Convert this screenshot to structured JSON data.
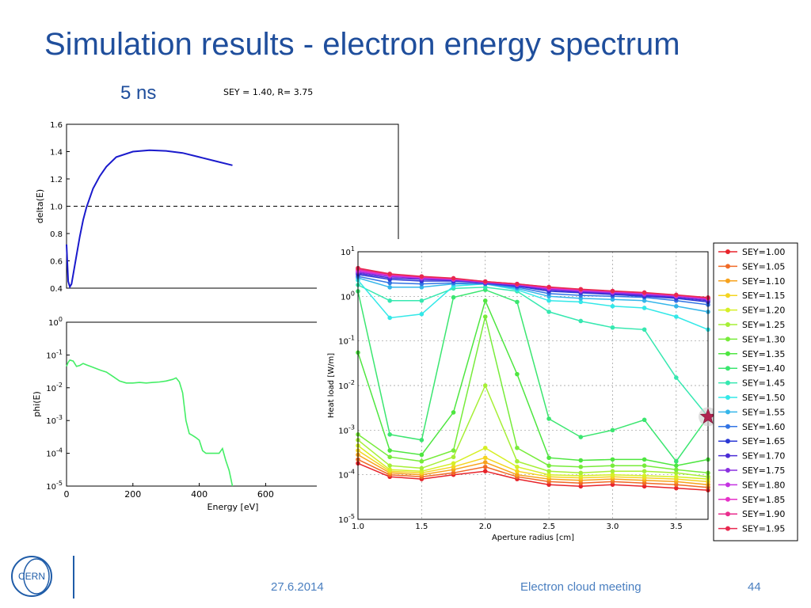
{
  "slide": {
    "title": "Simulation results - electron energy spectrum",
    "subtitle": "5 ns",
    "plot_title": "SEY = 1.40, R= 3.75",
    "footer_date": "27.6.2014",
    "footer_meeting": "Electron cloud meeting",
    "page_number": "44",
    "logo_text": "CERN"
  },
  "chart_data": [
    {
      "type": "line",
      "ylabel": "delta(E)",
      "xlim": [
        0,
        1000
      ],
      "ylim": [
        0.4,
        1.6
      ],
      "yticks": [
        "0.4",
        "0.6",
        "0.8",
        "1.0",
        "1.2",
        "1.4",
        "1.6"
      ],
      "series": [
        {
          "color": "#1a1acc",
          "x": [
            0,
            5,
            10,
            15,
            20,
            30,
            40,
            50,
            60,
            70,
            80,
            100,
            120,
            150,
            200,
            250,
            300,
            350,
            400,
            450,
            500
          ],
          "y": [
            0.72,
            0.45,
            0.41,
            0.43,
            0.5,
            0.64,
            0.78,
            0.9,
            0.99,
            1.06,
            1.13,
            1.22,
            1.29,
            1.36,
            1.4,
            1.41,
            1.405,
            1.39,
            1.36,
            1.33,
            1.3
          ]
        }
      ],
      "reference_line": {
        "y": 1.0,
        "style": "dashed"
      }
    },
    {
      "type": "line",
      "xlabel": "Energy [eV]",
      "ylabel": "phi(E)",
      "xlim": [
        0,
        1000
      ],
      "ylim_log10": [
        -5,
        0
      ],
      "xticks": [
        "0",
        "200",
        "400",
        "600"
      ],
      "yticks": [
        "10^-5",
        "10^-4",
        "10^-3",
        "10^-2",
        "10^-1",
        "10^0"
      ],
      "series": [
        {
          "color": "#44ee66",
          "x": [
            0,
            5,
            10,
            20,
            30,
            40,
            50,
            60,
            80,
            100,
            120,
            140,
            160,
            180,
            200,
            220,
            240,
            260,
            280,
            300,
            320,
            330,
            340,
            350,
            360,
            370,
            380,
            390,
            400,
            410,
            420,
            440,
            460,
            470,
            480,
            490,
            500
          ],
          "y": [
            0.045,
            0.06,
            0.07,
            0.065,
            0.045,
            0.048,
            0.055,
            0.05,
            0.042,
            0.035,
            0.03,
            0.022,
            0.016,
            0.014,
            0.014,
            0.0145,
            0.014,
            0.0145,
            0.015,
            0.016,
            0.018,
            0.02,
            0.015,
            0.007,
            0.001,
            0.0004,
            0.00035,
            0.0003,
            0.00025,
            0.00012,
            0.0001,
            0.0001,
            0.0001,
            0.00014,
            6e-05,
            3e-05,
            1e-05
          ]
        }
      ]
    },
    {
      "type": "line",
      "xlabel": "Aperture radius [cm]",
      "ylabel": "Heat load [W/m]",
      "xlim": [
        1.0,
        3.75
      ],
      "ylim_log10": [
        -5,
        1
      ],
      "xticks": [
        "1.0",
        "1.5",
        "2.0",
        "2.5",
        "3.0",
        "3.5"
      ],
      "yticks": [
        "10^-5",
        "10^-4",
        "10^-3",
        "10^-2",
        "10^-1",
        "10^0",
        "10^1"
      ],
      "x": [
        1.0,
        1.25,
        1.5,
        1.75,
        2.0,
        2.25,
        2.5,
        2.75,
        3.0,
        3.25,
        3.5,
        3.75
      ],
      "legend_position": "right",
      "series": [
        {
          "name": "SEY=1.00",
          "color": "#e8242b",
          "values": [
            0.00018,
            9e-05,
            8e-05,
            0.0001,
            0.00012,
            8e-05,
            6e-05,
            5.5e-05,
            6e-05,
            5.5e-05,
            5e-05,
            4.5e-05
          ]
        },
        {
          "name": "SEY=1.05",
          "color": "#f06a26",
          "values": [
            0.00022,
            0.0001,
            9e-05,
            0.00011,
            0.00015,
            9e-05,
            7e-05,
            6.5e-05,
            7e-05,
            6.5e-05,
            6e-05,
            5.2e-05
          ]
        },
        {
          "name": "SEY=1.10",
          "color": "#f7a21c",
          "values": [
            0.00028,
            0.00011,
            0.0001,
            0.00013,
            0.00019,
            0.0001,
            8e-05,
            7.5e-05,
            8e-05,
            7.5e-05,
            7e-05,
            6e-05
          ]
        },
        {
          "name": "SEY=1.15",
          "color": "#f4d421",
          "values": [
            0.00035,
            0.00012,
            0.00011,
            0.00015,
            0.00024,
            0.00012,
            9e-05,
            8.5e-05,
            9e-05,
            8.5e-05,
            8e-05,
            7e-05
          ]
        },
        {
          "name": "SEY=1.20",
          "color": "#d6ef26",
          "values": [
            0.00045,
            0.00013,
            0.00012,
            0.00018,
            0.0004,
            0.00015,
            0.0001,
            9.5e-05,
            0.0001,
            9.5e-05,
            9e-05,
            8e-05
          ]
        },
        {
          "name": "SEY=1.25",
          "color": "#a6ef36",
          "values": [
            0.0006,
            0.00016,
            0.00014,
            0.00025,
            0.01,
            0.0002,
            0.00012,
            0.00011,
            0.00012,
            0.00012,
            0.00011,
            9e-05
          ]
        },
        {
          "name": "SEY=1.30",
          "color": "#77ec3a",
          "values": [
            0.0008,
            0.00025,
            0.0002,
            0.00035,
            0.35,
            0.0004,
            0.00016,
            0.00015,
            0.00016,
            0.00016,
            0.00013,
            0.00011
          ]
        },
        {
          "name": "SEY=1.35",
          "color": "#4ee640",
          "values": [
            0.055,
            0.00035,
            0.00028,
            0.0025,
            0.8,
            0.018,
            0.00024,
            0.00021,
            0.00022,
            0.00022,
            0.00016,
            0.00022
          ]
        },
        {
          "name": "SEY=1.40",
          "color": "#3be670",
          "values": [
            1.3,
            0.0008,
            0.0006,
            0.95,
            1.4,
            0.75,
            0.0018,
            0.0007,
            0.001,
            0.0017,
            0.0002,
            0.002
          ]
        },
        {
          "name": "SEY=1.45",
          "color": "#36e8b0",
          "values": [
            1.8,
            0.8,
            0.8,
            1.5,
            1.6,
            1.3,
            0.45,
            0.28,
            0.2,
            0.18,
            0.015,
            0.002
          ]
        },
        {
          "name": "SEY=1.50",
          "color": "#33e8e8",
          "values": [
            2.3,
            0.33,
            0.4,
            1.7,
            1.9,
            1.4,
            0.8,
            0.75,
            0.6,
            0.55,
            0.35,
            0.18
          ]
        },
        {
          "name": "SEY=1.55",
          "color": "#35b6ea",
          "values": [
            2.6,
            1.6,
            1.6,
            1.9,
            1.9,
            1.5,
            1.0,
            0.9,
            0.85,
            0.8,
            0.6,
            0.45
          ]
        },
        {
          "name": "SEY=1.60",
          "color": "#3274e4",
          "values": [
            2.8,
            2.0,
            1.9,
            2.0,
            1.9,
            1.6,
            1.15,
            1.05,
            1.0,
            0.95,
            0.8,
            0.65
          ]
        },
        {
          "name": "SEY=1.65",
          "color": "#2b38d4",
          "values": [
            3.1,
            2.4,
            2.2,
            2.2,
            2.0,
            1.7,
            1.3,
            1.2,
            1.1,
            1.0,
            0.9,
            0.75
          ]
        },
        {
          "name": "SEY=1.70",
          "color": "#4a2cd6",
          "values": [
            3.3,
            2.6,
            2.4,
            2.3,
            2.0,
            1.75,
            1.4,
            1.25,
            1.15,
            1.05,
            0.95,
            0.8
          ]
        },
        {
          "name": "SEY=1.75",
          "color": "#8a30e0",
          "values": [
            3.5,
            2.8,
            2.5,
            2.35,
            2.05,
            1.8,
            1.45,
            1.3,
            1.2,
            1.1,
            1.0,
            0.85
          ]
        },
        {
          "name": "SEY=1.80",
          "color": "#c532e2",
          "values": [
            3.7,
            2.9,
            2.6,
            2.4,
            2.1,
            1.85,
            1.5,
            1.35,
            1.25,
            1.15,
            1.02,
            0.88
          ]
        },
        {
          "name": "SEY=1.85",
          "color": "#e631c8",
          "values": [
            3.9,
            3.0,
            2.7,
            2.45,
            2.1,
            1.85,
            1.55,
            1.4,
            1.28,
            1.18,
            1.05,
            0.9
          ]
        },
        {
          "name": "SEY=1.90",
          "color": "#ea2d8e",
          "values": [
            4.1,
            3.1,
            2.75,
            2.5,
            2.15,
            1.9,
            1.6,
            1.42,
            1.3,
            1.2,
            1.07,
            0.92
          ]
        },
        {
          "name": "SEY=1.95",
          "color": "#e8284f",
          "values": [
            4.3,
            3.2,
            2.8,
            2.55,
            2.15,
            1.9,
            1.62,
            1.45,
            1.32,
            1.22,
            1.08,
            0.94
          ]
        }
      ],
      "highlight_marker": {
        "x": 3.75,
        "y": 0.002,
        "shape": "star",
        "color": "#b0224f"
      }
    }
  ]
}
